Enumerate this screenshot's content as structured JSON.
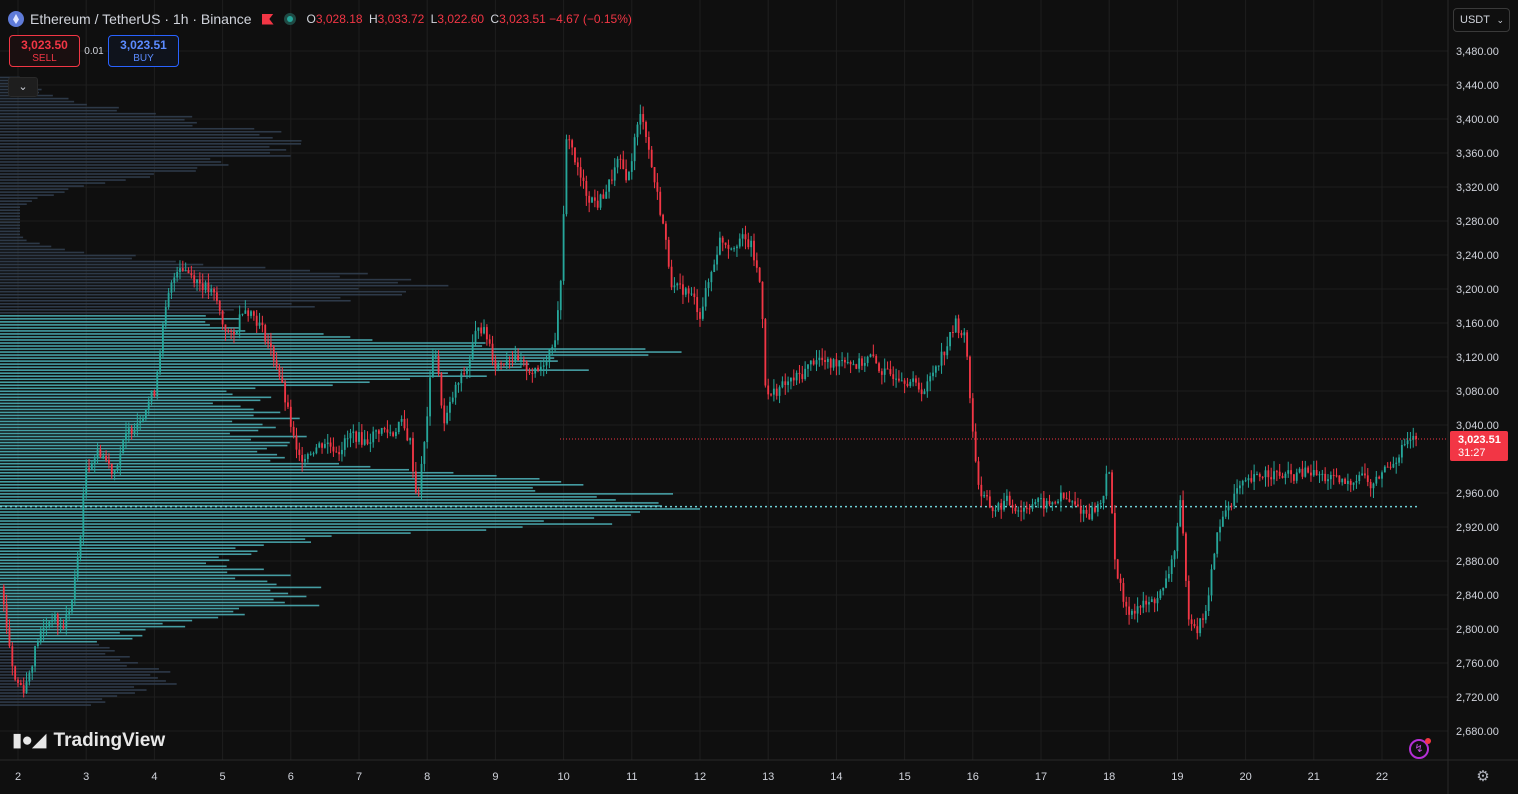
{
  "header": {
    "symbol_title": "Ethereum / TetherUS · 1h · Binance",
    "ohlc": [
      {
        "key": "O",
        "value": "3,028.18"
      },
      {
        "key": "H",
        "value": "3,033.72"
      },
      {
        "key": "L",
        "value": "3,022.60"
      },
      {
        "key": "C",
        "value": "3,023.51"
      }
    ],
    "change": "−4.67 (−0.15%)"
  },
  "trade": {
    "sell_price": "3,023.50",
    "sell_label": "SELL",
    "spread": "0.01",
    "buy_price": "3,023.51",
    "buy_label": "BUY"
  },
  "currency_selector": {
    "value": "USDT"
  },
  "brand": "TradingView",
  "colors": {
    "background": "#0f0f0f",
    "up": "#26a69a",
    "down": "#f23645",
    "volume_profile": "#4fb6bd",
    "volume_profile_dim": "#2f3c4c",
    "poc_line": "#6fd0d6",
    "grid": "#1e1e1e"
  },
  "chart_data": {
    "type": "candlestick",
    "x_ticks": [
      "2",
      "3",
      "4",
      "5",
      "6",
      "7",
      "8",
      "9",
      "10",
      "11",
      "12",
      "13",
      "14",
      "15",
      "16",
      "17",
      "18",
      "19",
      "20",
      "21",
      "22"
    ],
    "y_ticks": [
      "3,480.00",
      "3,440.00",
      "3,400.00",
      "3,360.00",
      "3,320.00",
      "3,280.00",
      "3,240.00",
      "3,200.00",
      "3,160.00",
      "3,120.00",
      "3,080.00",
      "3,040.00",
      "2,960.00",
      "2,920.00",
      "2,880.00",
      "2,840.00",
      "2,800.00",
      "2,760.00",
      "2,720.00",
      "2,680.00"
    ],
    "ylim": [
      2660,
      3510
    ],
    "xlim": [
      1.7,
      23.5
    ],
    "last_price": 3023.51,
    "last_price_label": "3,023.51",
    "countdown_label": "31:27",
    "poc_price": 2944,
    "path": [
      [
        1.75,
        2850
      ],
      [
        1.95,
        2740
      ],
      [
        2.1,
        2730
      ],
      [
        2.3,
        2790
      ],
      [
        2.5,
        2815
      ],
      [
        2.65,
        2800
      ],
      [
        2.8,
        2835
      ],
      [
        2.9,
        2900
      ],
      [
        3.0,
        2990
      ],
      [
        3.2,
        3010
      ],
      [
        3.4,
        2985
      ],
      [
        3.6,
        3030
      ],
      [
        3.8,
        3050
      ],
      [
        4.0,
        3080
      ],
      [
        4.1,
        3140
      ],
      [
        4.2,
        3190
      ],
      [
        4.35,
        3230
      ],
      [
        4.5,
        3220
      ],
      [
        4.7,
        3205
      ],
      [
        4.9,
        3190
      ],
      [
        5.0,
        3160
      ],
      [
        5.15,
        3140
      ],
      [
        5.3,
        3180
      ],
      [
        5.45,
        3170
      ],
      [
        5.6,
        3150
      ],
      [
        5.8,
        3110
      ],
      [
        6.0,
        3040
      ],
      [
        6.1,
        3000
      ],
      [
        6.3,
        3010
      ],
      [
        6.5,
        3020
      ],
      [
        6.7,
        3010
      ],
      [
        6.9,
        3030
      ],
      [
        7.1,
        3020
      ],
      [
        7.3,
        3035
      ],
      [
        7.5,
        3030
      ],
      [
        7.6,
        3045
      ],
      [
        7.75,
        3020
      ],
      [
        7.85,
        2950
      ],
      [
        7.95,
        3010
      ],
      [
        8.1,
        3140
      ],
      [
        8.25,
        3040
      ],
      [
        8.4,
        3080
      ],
      [
        8.6,
        3110
      ],
      [
        8.75,
        3160
      ],
      [
        8.9,
        3140
      ],
      [
        9.0,
        3110
      ],
      [
        9.2,
        3120
      ],
      [
        9.4,
        3110
      ],
      [
        9.6,
        3100
      ],
      [
        9.75,
        3120
      ],
      [
        9.9,
        3150
      ],
      [
        9.98,
        3240
      ],
      [
        10.05,
        3390
      ],
      [
        10.2,
        3340
      ],
      [
        10.35,
        3310
      ],
      [
        10.5,
        3300
      ],
      [
        10.65,
        3320
      ],
      [
        10.8,
        3350
      ],
      [
        10.95,
        3330
      ],
      [
        11.05,
        3380
      ],
      [
        11.15,
        3410
      ],
      [
        11.3,
        3340
      ],
      [
        11.45,
        3280
      ],
      [
        11.6,
        3200
      ],
      [
        11.75,
        3200
      ],
      [
        11.9,
        3190
      ],
      [
        12.0,
        3170
      ],
      [
        12.1,
        3200
      ],
      [
        12.2,
        3230
      ],
      [
        12.3,
        3260
      ],
      [
        12.45,
        3250
      ],
      [
        12.6,
        3260
      ],
      [
        12.75,
        3250
      ],
      [
        12.9,
        3200
      ],
      [
        12.97,
        3070
      ],
      [
        13.1,
        3080
      ],
      [
        13.3,
        3090
      ],
      [
        13.5,
        3100
      ],
      [
        13.7,
        3120
      ],
      [
        13.9,
        3110
      ],
      [
        14.1,
        3120
      ],
      [
        14.3,
        3110
      ],
      [
        14.5,
        3120
      ],
      [
        14.7,
        3100
      ],
      [
        14.9,
        3100
      ],
      [
        15.1,
        3090
      ],
      [
        15.3,
        3080
      ],
      [
        15.45,
        3110
      ],
      [
        15.6,
        3130
      ],
      [
        15.75,
        3160
      ],
      [
        15.9,
        3140
      ],
      [
        16.0,
        3030
      ],
      [
        16.1,
        2960
      ],
      [
        16.3,
        2940
      ],
      [
        16.5,
        2950
      ],
      [
        16.7,
        2940
      ],
      [
        16.9,
        2950
      ],
      [
        17.1,
        2945
      ],
      [
        17.3,
        2955
      ],
      [
        17.5,
        2945
      ],
      [
        17.7,
        2935
      ],
      [
        17.9,
        2950
      ],
      [
        17.98,
        3000
      ],
      [
        18.1,
        2870
      ],
      [
        18.25,
        2820
      ],
      [
        18.4,
        2825
      ],
      [
        18.6,
        2830
      ],
      [
        18.8,
        2845
      ],
      [
        18.95,
        2890
      ],
      [
        19.05,
        2950
      ],
      [
        19.15,
        2820
      ],
      [
        19.3,
        2800
      ],
      [
        19.45,
        2830
      ],
      [
        19.55,
        2900
      ],
      [
        19.7,
        2940
      ],
      [
        19.9,
        2965
      ],
      [
        20.1,
        2975
      ],
      [
        20.3,
        2985
      ],
      [
        20.5,
        2980
      ],
      [
        20.7,
        2980
      ],
      [
        20.9,
        2985
      ],
      [
        21.1,
        2980
      ],
      [
        21.3,
        2975
      ],
      [
        21.5,
        2970
      ],
      [
        21.7,
        2985
      ],
      [
        21.85,
        2965
      ],
      [
        22.0,
        2985
      ],
      [
        22.2,
        3000
      ],
      [
        22.35,
        3020
      ],
      [
        22.5,
        3023.51
      ]
    ],
    "volume_profile_extent": [
      2710,
      3450
    ]
  }
}
